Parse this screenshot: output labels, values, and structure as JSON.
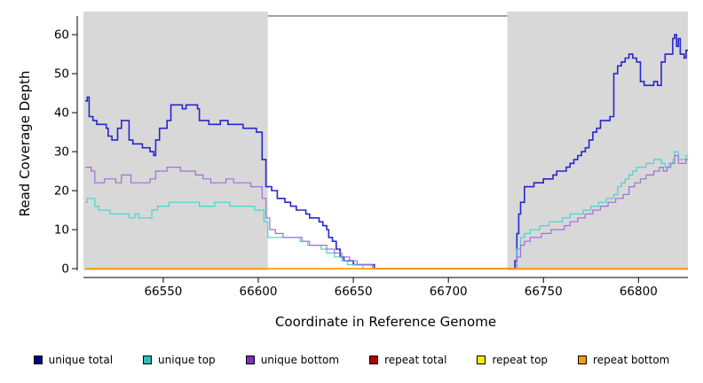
{
  "chart_data": {
    "type": "line",
    "title": "",
    "xlabel": "Coordinate in Reference Genome",
    "ylabel": "Read Coverage Depth",
    "xlim": [
      66508,
      66826
    ],
    "ylim": [
      0,
      64.8
    ],
    "x_ticks": [
      66550,
      66600,
      66650,
      66700,
      66750,
      66800
    ],
    "y_ticks": [
      0,
      10,
      20,
      30,
      40,
      50,
      60
    ],
    "grid": false,
    "legend_position": "bottom",
    "shade_color": "#d8d8d8",
    "top_border_color": "#6e6e6e",
    "shaded_regions": [
      [
        66508,
        66605
      ],
      [
        66731,
        66826
      ]
    ],
    "series": [
      {
        "name": "unique total",
        "color": "#2727cd",
        "legend_color": "#00008b",
        "width": 1.6,
        "points": [
          [
            66509,
            43
          ],
          [
            66510,
            44
          ],
          [
            66511,
            39
          ],
          [
            66513,
            38
          ],
          [
            66515,
            37
          ],
          [
            66518,
            37
          ],
          [
            66520,
            36
          ],
          [
            66521,
            34
          ],
          [
            66523,
            33
          ],
          [
            66525,
            33
          ],
          [
            66526,
            36
          ],
          [
            66528,
            38
          ],
          [
            66531,
            38
          ],
          [
            66532,
            33
          ],
          [
            66534,
            32
          ],
          [
            66537,
            32
          ],
          [
            66539,
            31
          ],
          [
            66542,
            31
          ],
          [
            66543,
            30
          ],
          [
            66545,
            29
          ],
          [
            66546,
            33
          ],
          [
            66548,
            36
          ],
          [
            66551,
            36
          ],
          [
            66552,
            38
          ],
          [
            66554,
            42
          ],
          [
            66558,
            42
          ],
          [
            66560,
            41
          ],
          [
            66562,
            42
          ],
          [
            66566,
            42
          ],
          [
            66568,
            41
          ],
          [
            66569,
            38
          ],
          [
            66572,
            38
          ],
          [
            66574,
            37
          ],
          [
            66579,
            37
          ],
          [
            66580,
            38
          ],
          [
            66583,
            38
          ],
          [
            66584,
            37
          ],
          [
            66590,
            37
          ],
          [
            66592,
            36
          ],
          [
            66597,
            36
          ],
          [
            66599,
            35
          ],
          [
            66601,
            35
          ],
          [
            66602,
            28
          ],
          [
            66604,
            21
          ],
          [
            66607,
            20
          ],
          [
            66610,
            18
          ],
          [
            66612,
            18
          ],
          [
            66614,
            17
          ],
          [
            66617,
            16
          ],
          [
            66620,
            15
          ],
          [
            66623,
            15
          ],
          [
            66625,
            14
          ],
          [
            66627,
            13
          ],
          [
            66630,
            13
          ],
          [
            66632,
            12
          ],
          [
            66634,
            11
          ],
          [
            66636,
            10
          ],
          [
            66637,
            8
          ],
          [
            66639,
            7
          ],
          [
            66641,
            5
          ],
          [
            66643,
            3
          ],
          [
            66645,
            2
          ],
          [
            66648,
            2
          ],
          [
            66650,
            1
          ],
          [
            66656,
            1
          ],
          [
            66659,
            1
          ],
          [
            66661,
            0
          ],
          [
            66734,
            0
          ],
          [
            66735,
            2
          ],
          [
            66736,
            9
          ],
          [
            66737,
            14
          ],
          [
            66738,
            17
          ],
          [
            66740,
            21
          ],
          [
            66743,
            21
          ],
          [
            66745,
            22
          ],
          [
            66748,
            22
          ],
          [
            66750,
            23
          ],
          [
            66753,
            23
          ],
          [
            66755,
            24
          ],
          [
            66757,
            25
          ],
          [
            66760,
            25
          ],
          [
            66762,
            26
          ],
          [
            66764,
            27
          ],
          [
            66766,
            28
          ],
          [
            66768,
            29
          ],
          [
            66770,
            30
          ],
          [
            66772,
            31
          ],
          [
            66774,
            33
          ],
          [
            66776,
            35
          ],
          [
            66778,
            36
          ],
          [
            66780,
            38
          ],
          [
            66783,
            38
          ],
          [
            66785,
            39
          ],
          [
            66787,
            50
          ],
          [
            66789,
            52
          ],
          [
            66791,
            53
          ],
          [
            66793,
            54
          ],
          [
            66795,
            55
          ],
          [
            66797,
            54
          ],
          [
            66799,
            53
          ],
          [
            66801,
            48
          ],
          [
            66803,
            47
          ],
          [
            66806,
            47
          ],
          [
            66808,
            48
          ],
          [
            66810,
            47
          ],
          [
            66812,
            53
          ],
          [
            66814,
            55
          ],
          [
            66816,
            55
          ],
          [
            66818,
            59
          ],
          [
            66819,
            60
          ],
          [
            66820,
            57
          ],
          [
            66821,
            59
          ],
          [
            66822,
            55
          ],
          [
            66824,
            54
          ],
          [
            66825,
            56
          ],
          [
            66826,
            56
          ]
        ]
      },
      {
        "name": "unique top",
        "color": "#46d4cc",
        "legend_color": "#2fbdb3",
        "width": 1.2,
        "points": [
          [
            66509,
            17
          ],
          [
            66510,
            18
          ],
          [
            66512,
            18
          ],
          [
            66514,
            16
          ],
          [
            66516,
            15
          ],
          [
            66520,
            15
          ],
          [
            66522,
            14
          ],
          [
            66527,
            14
          ],
          [
            66530,
            14
          ],
          [
            66532,
            13
          ],
          [
            66535,
            14
          ],
          [
            66537,
            13
          ],
          [
            66541,
            13
          ],
          [
            66544,
            15
          ],
          [
            66547,
            16
          ],
          [
            66551,
            16
          ],
          [
            66553,
            17
          ],
          [
            66559,
            17
          ],
          [
            66562,
            17
          ],
          [
            66566,
            17
          ],
          [
            66569,
            16
          ],
          [
            66573,
            16
          ],
          [
            66577,
            17
          ],
          [
            66582,
            17
          ],
          [
            66585,
            16
          ],
          [
            66591,
            16
          ],
          [
            66595,
            16
          ],
          [
            66598,
            15
          ],
          [
            66601,
            15
          ],
          [
            66603,
            12
          ],
          [
            66605,
            8
          ],
          [
            66612,
            8
          ],
          [
            66618,
            8
          ],
          [
            66622,
            7
          ],
          [
            66626,
            6
          ],
          [
            66630,
            6
          ],
          [
            66633,
            5
          ],
          [
            66636,
            4
          ],
          [
            66640,
            3
          ],
          [
            66644,
            2
          ],
          [
            66647,
            1
          ],
          [
            66652,
            1
          ],
          [
            66655,
            0
          ],
          [
            66734,
            0
          ],
          [
            66736,
            5
          ],
          [
            66738,
            8
          ],
          [
            66740,
            9
          ],
          [
            66743,
            10
          ],
          [
            66746,
            10
          ],
          [
            66748,
            11
          ],
          [
            66751,
            11
          ],
          [
            66753,
            12
          ],
          [
            66757,
            12
          ],
          [
            66760,
            13
          ],
          [
            66764,
            14
          ],
          [
            66768,
            14
          ],
          [
            66771,
            15
          ],
          [
            66775,
            16
          ],
          [
            66779,
            17
          ],
          [
            66783,
            18
          ],
          [
            66787,
            19
          ],
          [
            66789,
            21
          ],
          [
            66791,
            22
          ],
          [
            66793,
            23
          ],
          [
            66795,
            24
          ],
          [
            66797,
            25
          ],
          [
            66799,
            26
          ],
          [
            66802,
            26
          ],
          [
            66804,
            27
          ],
          [
            66806,
            27
          ],
          [
            66808,
            28
          ],
          [
            66810,
            28
          ],
          [
            66812,
            27
          ],
          [
            66814,
            26
          ],
          [
            66816,
            27
          ],
          [
            66818,
            28
          ],
          [
            66819,
            30
          ],
          [
            66821,
            28
          ],
          [
            66823,
            28
          ],
          [
            66825,
            29
          ],
          [
            66826,
            29
          ]
        ]
      },
      {
        "name": "unique bottom",
        "color": "#a06edc",
        "legend_color": "#7d2ec4",
        "width": 1.2,
        "points": [
          [
            66509,
            26
          ],
          [
            66511,
            26
          ],
          [
            66512,
            25
          ],
          [
            66514,
            22
          ],
          [
            66517,
            22
          ],
          [
            66519,
            23
          ],
          [
            66523,
            23
          ],
          [
            66525,
            22
          ],
          [
            66528,
            24
          ],
          [
            66531,
            24
          ],
          [
            66533,
            22
          ],
          [
            66537,
            22
          ],
          [
            66541,
            22
          ],
          [
            66543,
            23
          ],
          [
            66546,
            25
          ],
          [
            66550,
            25
          ],
          [
            66552,
            26
          ],
          [
            66556,
            26
          ],
          [
            66559,
            25
          ],
          [
            66564,
            25
          ],
          [
            66567,
            24
          ],
          [
            66571,
            23
          ],
          [
            66575,
            22
          ],
          [
            66580,
            22
          ],
          [
            66583,
            23
          ],
          [
            66587,
            22
          ],
          [
            66592,
            22
          ],
          [
            66596,
            21
          ],
          [
            66600,
            21
          ],
          [
            66602,
            18
          ],
          [
            66604,
            13
          ],
          [
            66606,
            10
          ],
          [
            66609,
            9
          ],
          [
            66613,
            8
          ],
          [
            66619,
            8
          ],
          [
            66623,
            7
          ],
          [
            66627,
            6
          ],
          [
            66632,
            6
          ],
          [
            66636,
            5
          ],
          [
            66640,
            4
          ],
          [
            66644,
            3
          ],
          [
            66648,
            2
          ],
          [
            66652,
            1
          ],
          [
            66657,
            1
          ],
          [
            66660,
            0
          ],
          [
            66734,
            0
          ],
          [
            66736,
            3
          ],
          [
            66738,
            6
          ],
          [
            66740,
            7
          ],
          [
            66743,
            8
          ],
          [
            66746,
            8
          ],
          [
            66749,
            9
          ],
          [
            66752,
            9
          ],
          [
            66754,
            10
          ],
          [
            66758,
            10
          ],
          [
            66761,
            11
          ],
          [
            66764,
            12
          ],
          [
            66768,
            13
          ],
          [
            66772,
            14
          ],
          [
            66776,
            15
          ],
          [
            66780,
            16
          ],
          [
            66784,
            17
          ],
          [
            66788,
            18
          ],
          [
            66792,
            19
          ],
          [
            66795,
            21
          ],
          [
            66798,
            22
          ],
          [
            66801,
            23
          ],
          [
            66804,
            24
          ],
          [
            66808,
            25
          ],
          [
            66811,
            26
          ],
          [
            66813,
            25
          ],
          [
            66815,
            26
          ],
          [
            66817,
            27
          ],
          [
            66819,
            29
          ],
          [
            66821,
            27
          ],
          [
            66823,
            27
          ],
          [
            66825,
            28
          ],
          [
            66826,
            28
          ]
        ]
      },
      {
        "name": "repeat total",
        "color": "#b22222",
        "legend_color": "#b00000",
        "width": 1.3,
        "points": [
          [
            66509,
            0
          ],
          [
            66826,
            0
          ]
        ]
      },
      {
        "name": "repeat top",
        "color": "#ffeb00",
        "legend_color": "#ffeb00",
        "width": 1.3,
        "points": [
          [
            66509,
            0
          ],
          [
            66826,
            0
          ]
        ]
      },
      {
        "name": "repeat bottom",
        "color": "#ff9d00",
        "legend_color": "#ff9d00",
        "width": 1.5,
        "points": [
          [
            66509,
            0
          ],
          [
            66826,
            0
          ]
        ]
      }
    ]
  }
}
